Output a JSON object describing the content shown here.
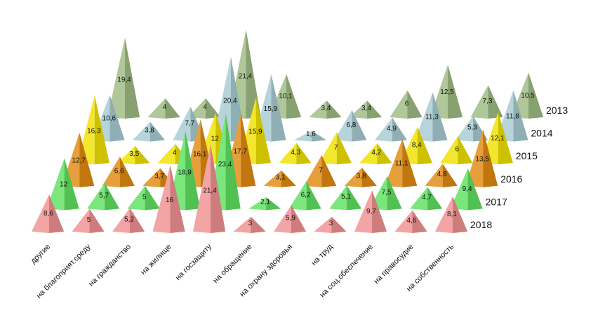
{
  "chart_data": {
    "type": "bar",
    "style": "3d-pyramid",
    "categories": [
      "другие",
      "на благоприят.среду",
      "на гражданство",
      "на жилище",
      "на госзащиту",
      "на обращение",
      "на охрану здоровья",
      "на труд",
      "на соц.обеспечение",
      "на правосудие",
      "на собственность"
    ],
    "series": [
      {
        "name": "2013",
        "color": "#9dbb82",
        "values": [
          19.4,
          4,
          4,
          21.4,
          10.1,
          3.4,
          3.4,
          6,
          12.5,
          7.3,
          10.5
        ]
      },
      {
        "name": "2014",
        "color": "#a6cbd2",
        "values": [
          10.6,
          3.8,
          7.7,
          20.4,
          15.9,
          1.6,
          6.8,
          4.9,
          11.3,
          5.3,
          11.8
        ]
      },
      {
        "name": "2015",
        "color": "#f0e000",
        "values": [
          16.3,
          3.5,
          4,
          12,
          15.9,
          4.3,
          7,
          4.2,
          8.4,
          6,
          12.1
        ]
      },
      {
        "name": "2016",
        "color": "#e08a10",
        "values": [
          12.7,
          6.6,
          3.7,
          16.1,
          17.7,
          3.1,
          7,
          3.8,
          11.1,
          4.8,
          13.5
        ]
      },
      {
        "name": "2017",
        "color": "#5ee05e",
        "values": [
          12,
          5.7,
          5,
          18.9,
          23.4,
          2.1,
          6.2,
          5.1,
          7.5,
          4.7,
          9.4
        ]
      },
      {
        "name": "2018",
        "color": "#f09090",
        "values": [
          8.6,
          5,
          5.2,
          16,
          21.4,
          3,
          5.9,
          3,
          9.7,
          4.6,
          8.1
        ]
      }
    ],
    "value_labels": [
      [
        "19,4",
        "4",
        "4",
        "21,4",
        "10,1",
        "3,4",
        "3,4",
        "6",
        "12,5",
        "7,3",
        "10,5"
      ],
      [
        "10,6",
        "3,8",
        "7,7",
        "20,4",
        "15,9",
        "1,6",
        "6,8",
        "4,9",
        "11,3",
        "5,3",
        "11,8"
      ],
      [
        "16,3",
        "3,5",
        "4",
        "12",
        "15,9",
        "4,3",
        "7",
        "4,2",
        "8,4",
        "6",
        "12,1"
      ],
      [
        "12,7",
        "6,6",
        "3,7",
        "16,1",
        "17,7",
        "3,1",
        "7",
        "3,8",
        "11,1",
        "4,8",
        "13,5"
      ],
      [
        "12",
        "5,7",
        "5",
        "18,9",
        "23,4",
        "2,1",
        "6,2",
        "5,1",
        "7,5",
        "4,7",
        "9,4"
      ],
      [
        "8,6",
        "5",
        "5,2",
        "16",
        "21,4",
        "3",
        "5,9",
        "3",
        "9,7",
        "4,6",
        "8,1"
      ]
    ],
    "title": "",
    "xlabel": "",
    "ylabel": ""
  }
}
